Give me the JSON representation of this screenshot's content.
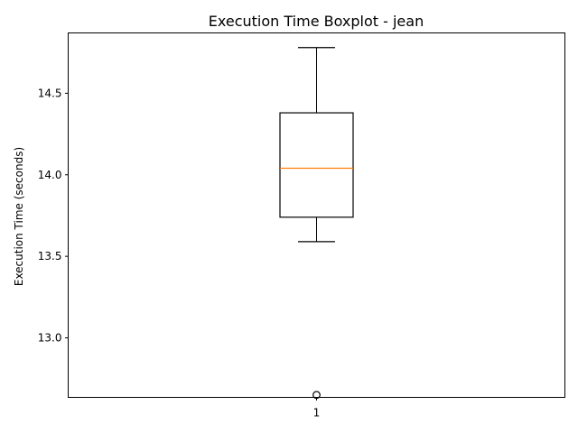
{
  "chart_data": {
    "type": "boxplot",
    "title": "Execution Time Boxplot - jean",
    "xlabel": "",
    "ylabel": "Execution Time (seconds)",
    "categories": [
      "1"
    ],
    "ylim": [
      12.635,
      14.87
    ],
    "yticks": [
      13.0,
      13.5,
      14.0,
      14.5
    ],
    "ytick_labels": [
      "13.0",
      "13.5",
      "14.0",
      "14.5"
    ],
    "boxes": [
      {
        "category": "1",
        "whisker_low": 13.59,
        "q1": 13.74,
        "median": 14.04,
        "q3": 14.38,
        "whisker_high": 14.78,
        "outliers": [
          12.65
        ]
      }
    ],
    "grid": false,
    "legend": "none",
    "colors": {
      "box": "#000000",
      "median": "#ff7f0e",
      "outlier": "#000000"
    }
  }
}
